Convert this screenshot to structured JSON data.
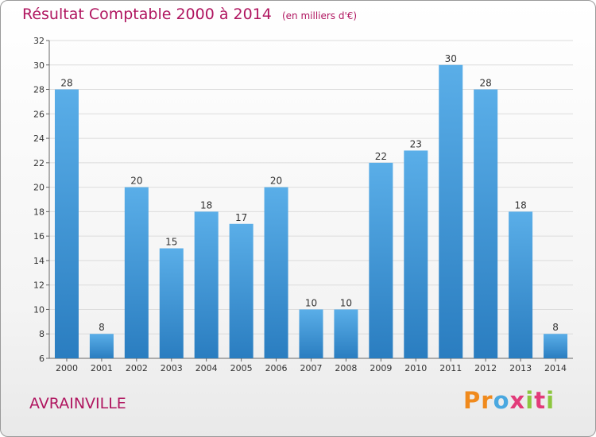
{
  "header": {
    "title": "Résultat Comptable 2000 à 2014",
    "unit": "(en milliers d'€)"
  },
  "footer": {
    "commune": "AVRAINVILLE",
    "logo_letters": [
      "P",
      "r",
      "o",
      "x",
      "i",
      "t",
      "i"
    ],
    "logo_colors": [
      "#f08a1d",
      "#f08a1d",
      "#4aa8e0",
      "#e23b7a",
      "#8cc63f",
      "#e23b7a",
      "#8cc63f"
    ]
  },
  "colors": {
    "title": "#b01660",
    "bar_light": "#5aaee8",
    "bar_dark": "#2a7dc0",
    "grid": "#dcdcdc"
  },
  "chart_data": {
    "type": "bar",
    "title": "Résultat Comptable 2000 à 2014",
    "categories": [
      "2000",
      "2001",
      "2002",
      "2003",
      "2004",
      "2005",
      "2006",
      "2007",
      "2008",
      "2009",
      "2010",
      "2011",
      "2012",
      "2013",
      "2014"
    ],
    "values": [
      28,
      8,
      20,
      15,
      18,
      17,
      20,
      10,
      10,
      22,
      23,
      30,
      28,
      18,
      8
    ],
    "ylim": [
      6,
      32
    ],
    "yticks": [
      6,
      8,
      10,
      12,
      14,
      16,
      18,
      20,
      22,
      24,
      26,
      28,
      30,
      32
    ],
    "grid": true,
    "xlabel": "",
    "ylabel": ""
  }
}
